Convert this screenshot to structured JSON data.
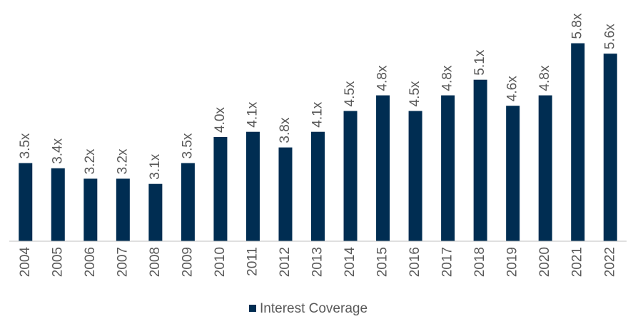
{
  "chart_data": {
    "type": "bar",
    "categories": [
      "2004",
      "2005",
      "2006",
      "2007",
      "2008",
      "2009",
      "2010",
      "2011",
      "2012",
      "2013",
      "2014",
      "2015",
      "2016",
      "2017",
      "2018",
      "2019",
      "2020",
      "2021",
      "2022"
    ],
    "series": [
      {
        "name": "Interest Coverage",
        "color": "#002d52",
        "values": [
          3.5,
          3.4,
          3.2,
          3.2,
          3.1,
          3.5,
          4.0,
          4.1,
          3.8,
          4.1,
          4.5,
          4.8,
          4.5,
          4.8,
          5.1,
          4.6,
          4.8,
          5.8,
          5.6
        ],
        "value_labels": [
          "3.5x",
          "3.4x",
          "3.2x",
          "3.2x",
          "3.1x",
          "3.5x",
          "4.0x",
          "4.1x",
          "3.8x",
          "4.1x",
          "4.5x",
          "4.8x",
          "4.5x",
          "4.8x",
          "5.1x",
          "4.6x",
          "4.8x",
          "5.8x",
          "5.6x"
        ]
      }
    ],
    "ylim": [
      2,
      6
    ],
    "legend": "bottom"
  }
}
